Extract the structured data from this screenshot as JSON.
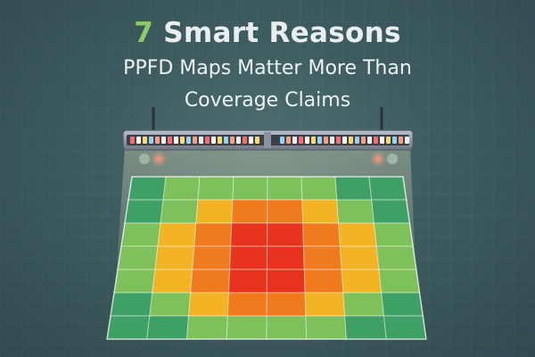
{
  "header": {
    "number": "7",
    "title": "Smart Reasons",
    "subtitle_line1": "PPFD Maps Matter More  Than",
    "subtitle_line2": "Coverage Claims"
  },
  "colors": {
    "background": "#3e5c5f",
    "number_accent": "#8ec96a",
    "text": "#e9eff0",
    "heat_low": "#4caf6a",
    "heat_mid": "#f0b020",
    "heat_high": "#e8331e"
  },
  "illustration": {
    "fixture": "led-grow-light-bar",
    "heatmap_grid": [
      [
        0,
        1,
        1,
        1,
        1,
        1,
        0,
        0
      ],
      [
        0,
        1,
        2,
        3,
        3,
        2,
        1,
        0
      ],
      [
        1,
        2,
        3,
        4,
        4,
        3,
        2,
        1
      ],
      [
        1,
        2,
        3,
        4,
        4,
        3,
        2,
        1
      ],
      [
        1,
        2,
        3,
        4,
        4,
        3,
        2,
        1
      ],
      [
        0,
        1,
        2,
        3,
        3,
        2,
        1,
        0
      ],
      [
        0,
        0,
        1,
        1,
        1,
        1,
        0,
        0
      ]
    ]
  }
}
